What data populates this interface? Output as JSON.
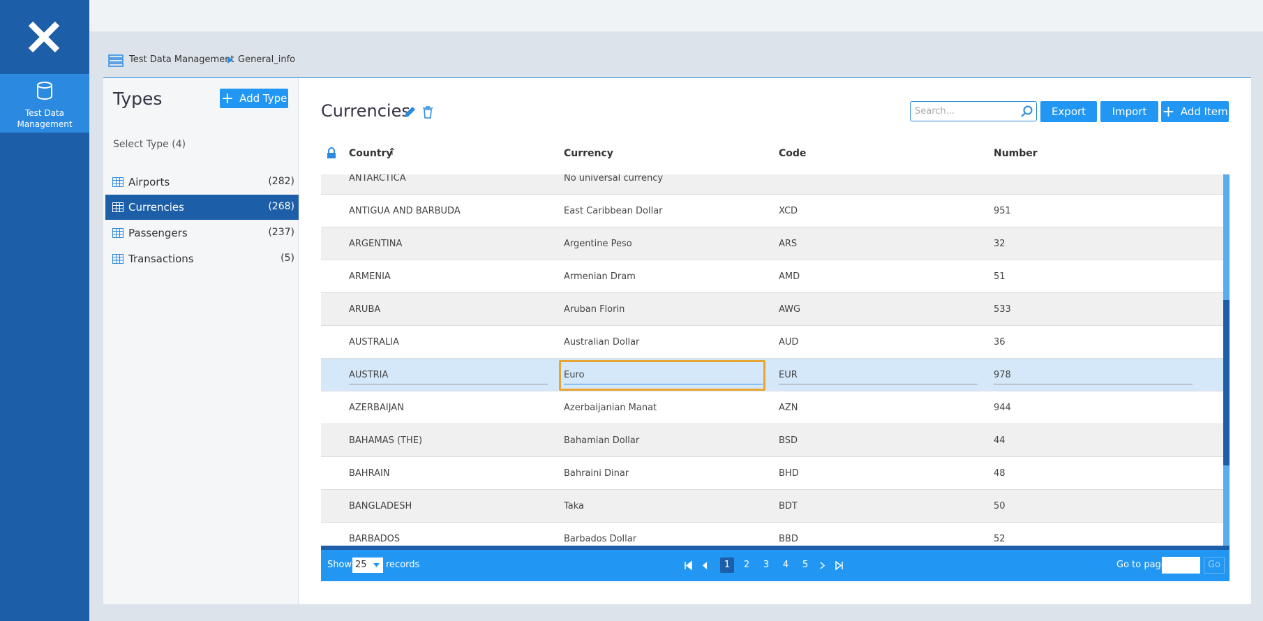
{
  "sidebar": {
    "nav_label": "Test Data Management"
  },
  "breadcrumb": [
    "Test Data Management",
    "General_info"
  ],
  "types_panel": {
    "title": "Types",
    "add_button": "Add Type",
    "select_label": "Select Type (4)",
    "items": [
      {
        "name": "Airports",
        "count": "(282)"
      },
      {
        "name": "Currencies",
        "count": "(268)"
      },
      {
        "name": "Passengers",
        "count": "(237)"
      },
      {
        "name": "Transactions",
        "count": "(5)"
      }
    ]
  },
  "main": {
    "title": "Currencies",
    "search_placeholder": "Search...",
    "buttons": [
      "Export",
      "Import",
      "Add Item"
    ],
    "table": {
      "columns": [
        "Country",
        "Currency",
        "Code",
        "Number"
      ],
      "rows": [
        [
          "ANTARCTICA",
          "No universal currency",
          null,
          null
        ],
        [
          "ANTIGUA AND BARBUDA",
          "East Caribbean Dollar",
          "XCD",
          951
        ],
        [
          "ARGENTINA",
          "Argentine Peso",
          "ARS",
          32
        ],
        [
          "ARMENIA",
          "Armenian Dram",
          "AMD",
          51
        ],
        [
          "ARUBA",
          "Aruban Florin",
          "AWG",
          533
        ],
        [
          "AUSTRALIA",
          "Australian Dollar",
          "AUD",
          36
        ],
        [
          "AUSTRIA",
          "Euro",
          "EUR",
          978
        ],
        [
          "AZERBAIJAN",
          "Azerbaijanian Manat",
          "AZN",
          944
        ],
        [
          "BAHAMAS (THE)",
          "Bahamian Dollar",
          "BSD",
          44
        ],
        [
          "BAHRAIN",
          "Bahraini Dinar",
          "BHD",
          48
        ],
        [
          "BANGLADESH",
          "Taka",
          "BDT",
          50
        ],
        [
          "BARBADOS",
          "Barbados Dollar",
          "BBD",
          52
        ]
      ]
    },
    "footer": {
      "show": "Show",
      "page_size": "25",
      "records": "records",
      "pages": [
        "1",
        "2",
        "3",
        "4",
        "5"
      ],
      "go_to_page": "Go to page",
      "go": "Go"
    }
  }
}
